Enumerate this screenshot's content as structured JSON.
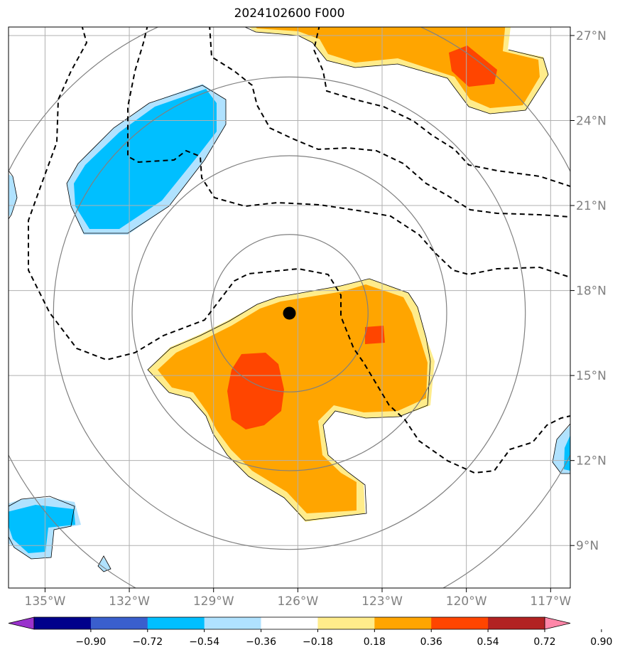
{
  "title": "2024102600 F000",
  "map": {
    "lon_range": [
      -136.3,
      -116.3
    ],
    "lat_range": [
      7.5,
      27.3
    ],
    "lon_ticks": [
      -135,
      -132,
      -129,
      -126,
      -123,
      -120,
      -117
    ],
    "lat_ticks": [
      9,
      12,
      15,
      18,
      21,
      24,
      27
    ],
    "lon_tick_labels": [
      "135°W",
      "132°W",
      "129°W",
      "126°W",
      "123°W",
      "120°W",
      "117°W"
    ],
    "lat_tick_labels": [
      "9°N",
      "12°N",
      "15°N",
      "18°N",
      "21°N",
      "24°N",
      "27°N"
    ],
    "gridlines": true,
    "storm_center": {
      "lon": -126.3,
      "lat": 17.2
    },
    "range_rings_deg": [
      2.8,
      5.6,
      8.4,
      11.2
    ]
  },
  "colorbar": {
    "ticks": [
      "−0.90",
      "−0.72",
      "−0.54",
      "−0.36",
      "−0.18",
      "0.18",
      "0.36",
      "0.54",
      "0.72",
      "0.90"
    ],
    "colors": [
      "#9932cc",
      "#00008b",
      "#3a5fcd",
      "#00bfff",
      "#b0e2ff",
      "#ffffff",
      "#ffec8b",
      "#ffa500",
      "#ff4500",
      "#b22222",
      "#ff86a8"
    ],
    "extend": "both"
  },
  "colors": {
    "grid": "#b0b0b0",
    "ring": "#808080",
    "contour": "#000000"
  }
}
